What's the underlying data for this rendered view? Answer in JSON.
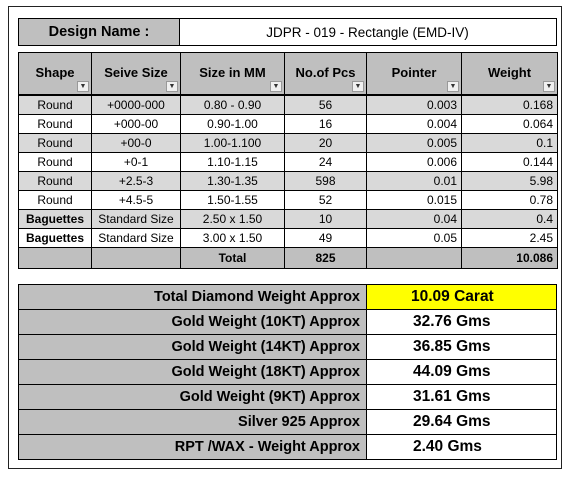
{
  "design": {
    "label": "Design Name :",
    "value": "JDPR - 019 - Rectangle (EMD-IV)"
  },
  "columns": [
    {
      "key": "shape",
      "label": "Shape",
      "filter": "dropdown"
    },
    {
      "key": "sieve",
      "label": "Seive Size",
      "filter": "dropdown"
    },
    {
      "key": "size",
      "label": "Size in MM",
      "filter": "dropdown"
    },
    {
      "key": "pcs",
      "label": "No.of Pcs",
      "filter": "sorted-filter"
    },
    {
      "key": "pointer",
      "label": "Pointer",
      "filter": "dropdown"
    },
    {
      "key": "weight",
      "label": "Weight",
      "filter": "dropdown"
    }
  ],
  "rows": [
    {
      "shape": "Round",
      "sieve": "+0000-000",
      "size": "0.80 - 0.90",
      "pcs": "56",
      "pointer": "0.003",
      "weight": "0.168"
    },
    {
      "shape": "Round",
      "sieve": "+000-00",
      "size": "0.90-1.00",
      "pcs": "16",
      "pointer": "0.004",
      "weight": "0.064"
    },
    {
      "shape": "Round",
      "sieve": "+00-0",
      "size": "1.00-1.100",
      "pcs": "20",
      "pointer": "0.005",
      "weight": "0.1"
    },
    {
      "shape": "Round",
      "sieve": "+0-1",
      "size": "1.10-1.15",
      "pcs": "24",
      "pointer": "0.006",
      "weight": "0.144"
    },
    {
      "shape": "Round",
      "sieve": "+2.5-3",
      "size": "1.30-1.35",
      "pcs": "598",
      "pointer": "0.01",
      "weight": "5.98"
    },
    {
      "shape": "Round",
      "sieve": "+4.5-5",
      "size": "1.50-1.55",
      "pcs": "52",
      "pointer": "0.015",
      "weight": "0.78"
    },
    {
      "shape": "Baguettes",
      "sieve": "Standard Size",
      "size": "2.50 x 1.50",
      "pcs": "10",
      "pointer": "0.04",
      "weight": "0.4"
    },
    {
      "shape": "Baguettes",
      "sieve": "Standard Size",
      "size": "3.00 x 1.50",
      "pcs": "49",
      "pointer": "0.05",
      "weight": "2.45"
    }
  ],
  "total": {
    "label": "Total",
    "pcs": "825",
    "weight": "10.086"
  },
  "summary": [
    {
      "label": "Total Diamond Weight Approx",
      "value": "10.09 Carat",
      "highlight": "#ffff00"
    },
    {
      "label": "Gold Weight (10KT) Approx",
      "value": "32.76 Gms"
    },
    {
      "label": "Gold Weight (14KT) Approx",
      "value": "36.85 Gms"
    },
    {
      "label": "Gold Weight (18KT) Approx",
      "value": "44.09 Gms"
    },
    {
      "label": "Gold Weight (9KT) Approx",
      "value": "31.61 Gms"
    },
    {
      "label": "Silver 925 Approx",
      "value": "29.64 Gms"
    },
    {
      "label": "RPT /WAX - Weight Approx",
      "value": "2.40 Gms"
    }
  ],
  "colors": {
    "header_grey": "#bfbfbf",
    "band_grey": "#d9d9d9",
    "highlight": "#ffff00"
  }
}
